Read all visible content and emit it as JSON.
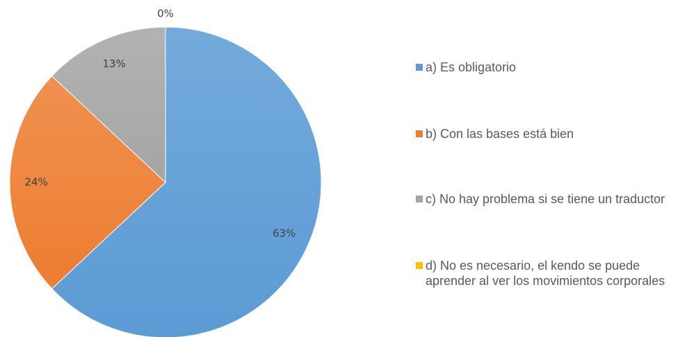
{
  "chart_data": {
    "type": "pie",
    "categories": [
      "a) Es obligatorio",
      "b) Con las bases está bien",
      "c) No hay problema si se tiene un traductor",
      "d) No es necesario, el kendo se puede aprender al ver los movimientos corporales"
    ],
    "values": [
      63,
      24,
      13,
      0
    ],
    "value_labels": [
      "63%",
      "24%",
      "13%",
      "0%"
    ],
    "colors": [
      "#5b9bd5",
      "#ed7d31",
      "#a5a5a5",
      "#ffc000"
    ],
    "legend": "right"
  }
}
